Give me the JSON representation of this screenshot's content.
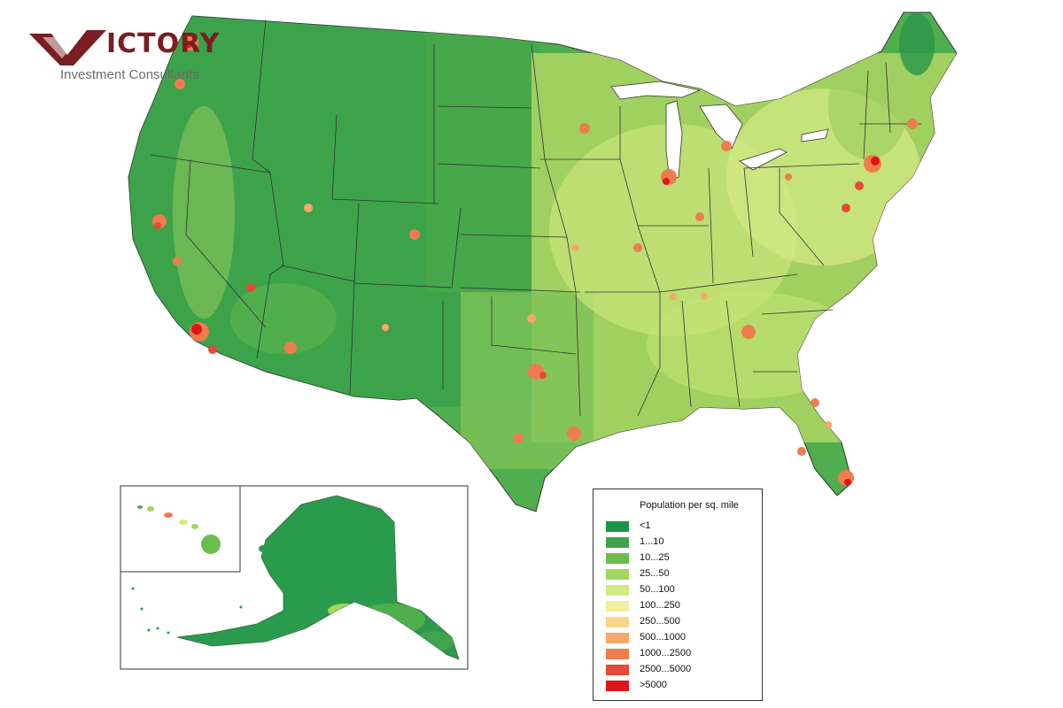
{
  "logo": {
    "word": "ICTORY",
    "subtitle": "Investment Consultants",
    "brand_color": "#7a1e22"
  },
  "legend": {
    "title": "Population per sq. mile",
    "items": [
      {
        "label": "<1",
        "color": "#1e9448"
      },
      {
        "label": "1...10",
        "color": "#3ea54c"
      },
      {
        "label": "10...25",
        "color": "#6cbd4f"
      },
      {
        "label": "25...50",
        "color": "#a2d65e"
      },
      {
        "label": "50...100",
        "color": "#d2ea84"
      },
      {
        "label": "100...250",
        "color": "#efef9d"
      },
      {
        "label": "250...500",
        "color": "#f9d68b"
      },
      {
        "label": "500...1000",
        "color": "#f6a769"
      },
      {
        "label": "1000...2500",
        "color": "#ee7c4c"
      },
      {
        "label": "2500...5000",
        "color": "#e44a37"
      },
      {
        "label": ">5000",
        "color": "#e0141b"
      }
    ]
  },
  "map": {
    "main_region": "contiguous-us",
    "insets": [
      "hawaii",
      "alaska"
    ]
  }
}
